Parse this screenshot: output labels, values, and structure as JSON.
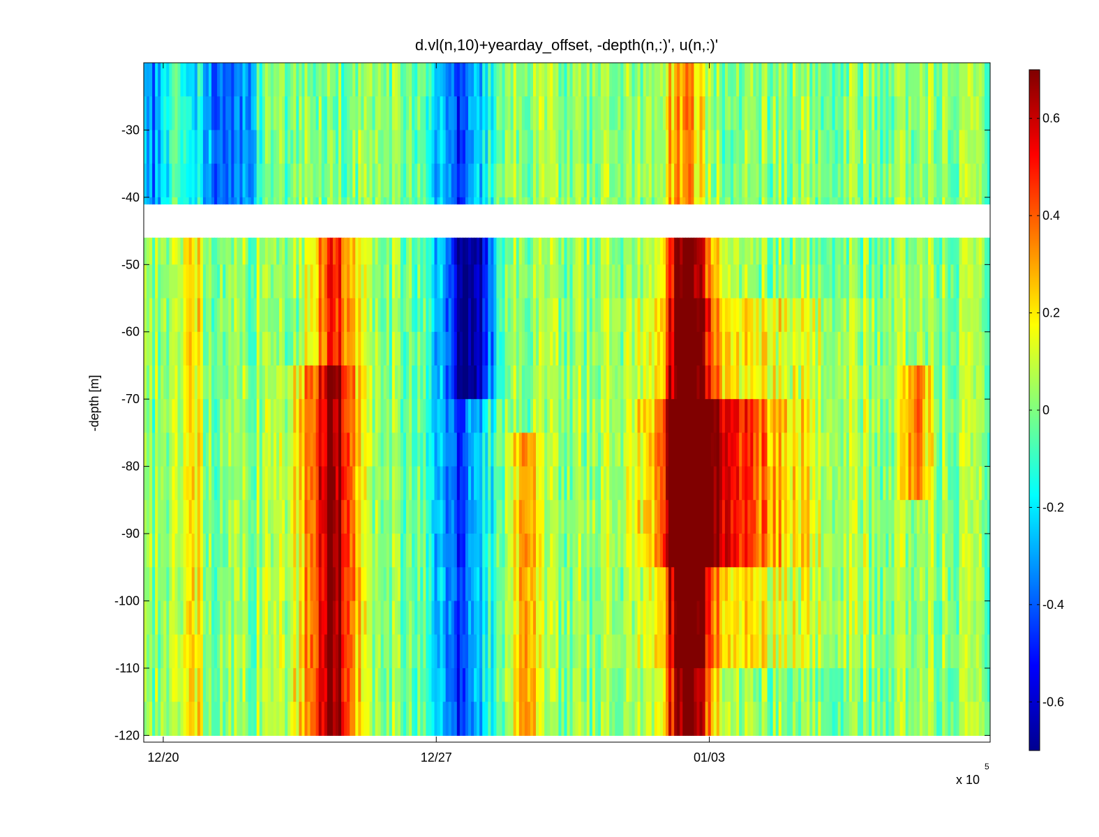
{
  "chart_data": {
    "type": "heatmap",
    "title": "d.vl(n,10)+yearday_offset, -depth(n,:)', u(n,:)'",
    "xlabel": "",
    "ylabel": "-depth [m]",
    "x_multiplier_label": "x 10",
    "x_multiplier_exponent": "5",
    "x_ticks": [
      "12/20",
      "12/27",
      "01/03"
    ],
    "y_ticks": [
      -30,
      -40,
      -50,
      -60,
      -70,
      -80,
      -90,
      -100,
      -110,
      -120
    ],
    "ylim": [
      -121,
      -20
    ],
    "x_range_days": [
      -0.5,
      21.2
    ],
    "x_tick_days": [
      0,
      7,
      14
    ],
    "depth_bins": [
      -20,
      -25,
      -30,
      -35,
      -40,
      -46,
      -50,
      -55,
      -60,
      -65,
      -70,
      -75,
      -80,
      -85,
      -90,
      -95,
      -100,
      -105,
      -110,
      -115,
      -120
    ],
    "data_gap_depth_range": [
      -45.5,
      -41
    ],
    "colorbar": {
      "ticks": [
        0.6,
        0.4,
        0.2,
        0,
        -0.2,
        -0.4,
        -0.6
      ],
      "clim": [
        -0.7,
        0.7
      ],
      "colormap": "jet"
    },
    "features": [
      {
        "day": -0.3,
        "width": 0.5,
        "depth_top": -20,
        "depth_bottom": -47,
        "value": -0.35
      },
      {
        "day": 1.3,
        "width": 0.6,
        "depth_top": -20,
        "depth_bottom": -47,
        "value": -0.3
      },
      {
        "day": 2.0,
        "width": 0.5,
        "depth_top": -20,
        "depth_bottom": -47,
        "value": -0.3
      },
      {
        "day": 0.7,
        "width": 0.25,
        "depth_top": -45,
        "depth_bottom": -121,
        "value": 0.3
      },
      {
        "day": 4.4,
        "width": 0.55,
        "depth_top": -45,
        "depth_bottom": -121,
        "value": 0.5
      },
      {
        "day": 4.0,
        "width": 0.9,
        "depth_top": -65,
        "depth_bottom": -121,
        "value": 0.22
      },
      {
        "day": 7.6,
        "width": 0.8,
        "depth_top": -20,
        "depth_bottom": -121,
        "value": -0.45
      },
      {
        "day": 8.0,
        "width": 0.5,
        "depth_top": -45,
        "depth_bottom": -70,
        "value": -0.4
      },
      {
        "day": 9.3,
        "width": 0.3,
        "depth_top": -75,
        "depth_bottom": -121,
        "value": 0.35
      },
      {
        "day": 13.3,
        "width": 0.5,
        "depth_top": -20,
        "depth_bottom": -45,
        "value": 0.32
      },
      {
        "day": 13.4,
        "width": 0.5,
        "depth_top": -45,
        "depth_bottom": -121,
        "value": 0.55
      },
      {
        "day": 14.2,
        "width": 1.6,
        "depth_top": -70,
        "depth_bottom": -95,
        "value": 0.35
      },
      {
        "day": 13.6,
        "width": 0.9,
        "depth_top": -45,
        "depth_bottom": -121,
        "value": 0.25
      },
      {
        "day": 19.3,
        "width": 0.35,
        "depth_top": -65,
        "depth_bottom": -85,
        "value": 0.35
      },
      {
        "day": 15.0,
        "width": 2.5,
        "depth_top": -55,
        "depth_bottom": -110,
        "value": 0.15
      }
    ]
  }
}
